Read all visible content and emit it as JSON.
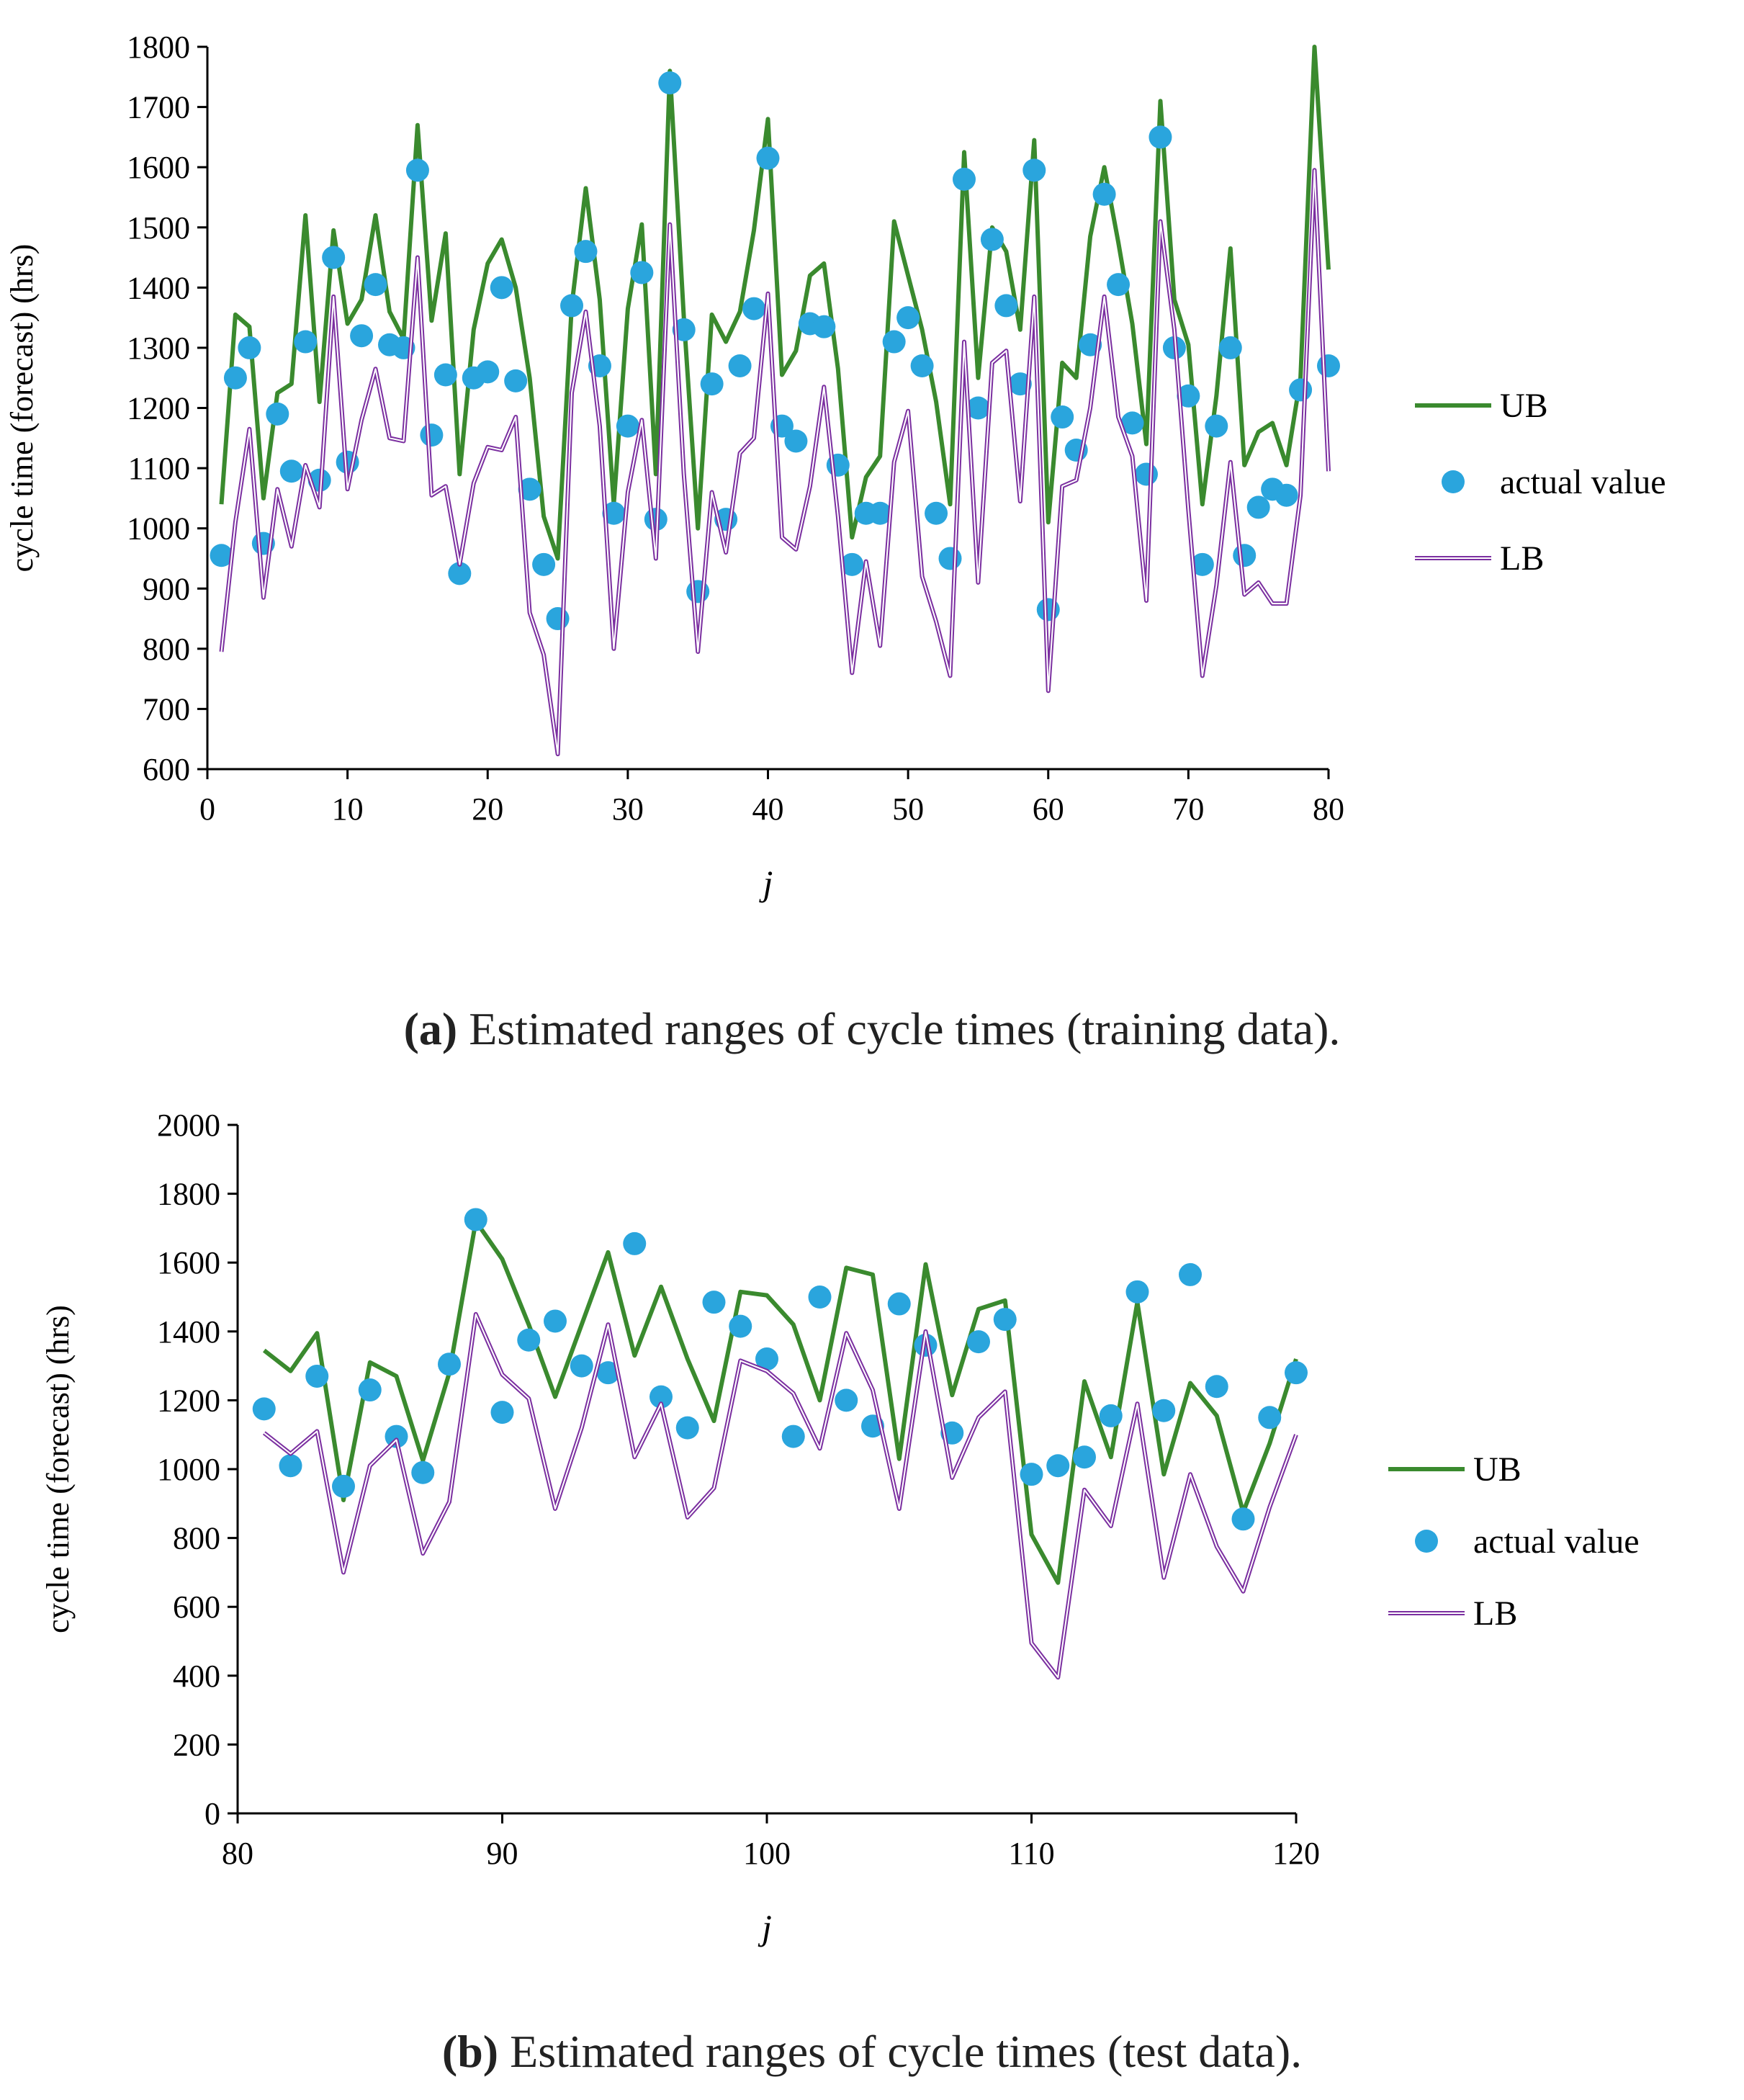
{
  "colors": {
    "ub": "#3a8a2e",
    "lb": "#7b2fa0",
    "lb_inner": "#ffffff",
    "actual": "#2aa5dd",
    "axis": "#000000"
  },
  "legend_labels": {
    "ub": "UB",
    "actual": "actual value",
    "lb": "LB"
  },
  "panels": [
    {
      "caption_letter": "(a)",
      "caption_text": " Estimated ranges of cycle times (training data).",
      "ylabel": "cycle time (forecast) (hrs)",
      "xlabel": "j"
    },
    {
      "caption_letter": "(b)",
      "caption_text": " Estimated ranges of cycle times (test data).",
      "ylabel": "cycle time (forecast) (hrs)",
      "xlabel": "j"
    }
  ],
  "chart_data": [
    {
      "type": "line",
      "title": "",
      "xlabel": "j",
      "ylabel": "cycle time (forecast) (hrs)",
      "xlim": [
        0,
        80
      ],
      "ylim": [
        600,
        1800
      ],
      "xticks": [
        0,
        10,
        20,
        30,
        40,
        50,
        60,
        70,
        80
      ],
      "yticks": [
        600,
        700,
        800,
        900,
        1000,
        1100,
        1200,
        1300,
        1400,
        1500,
        1600,
        1700,
        1800
      ],
      "grid": false,
      "legend_position": "right",
      "x_start": 1,
      "series": [
        {
          "name": "UB",
          "style": "line",
          "values": [
            1040,
            1355,
            1335,
            1050,
            1225,
            1240,
            1520,
            1210,
            1495,
            1340,
            1380,
            1520,
            1360,
            1315,
            1670,
            1345,
            1490,
            1090,
            1330,
            1440,
            1480,
            1400,
            1250,
            1020,
            950,
            1370,
            1565,
            1380,
            1040,
            1365,
            1505,
            1090,
            1760,
            1350,
            1000,
            1355,
            1310,
            1360,
            1495,
            1680,
            1255,
            1295,
            1420,
            1440,
            1265,
            985,
            1085,
            1120,
            1510,
            1420,
            1330,
            1210,
            1040,
            1625,
            1250,
            1500,
            1460,
            1330,
            1645,
            1010,
            1275,
            1250,
            1485,
            1600,
            1475,
            1340,
            1140,
            1710,
            1380,
            1305,
            1040,
            1220,
            1465,
            1105,
            1160,
            1175,
            1105,
            1250,
            1800,
            1430
          ]
        },
        {
          "name": "actual value",
          "style": "marker",
          "values": [
            955,
            1250,
            1300,
            975,
            1190,
            1095,
            1310,
            1080,
            1450,
            1110,
            1320,
            1405,
            1305,
            1300,
            1595,
            1155,
            1255,
            925,
            1250,
            1260,
            1400,
            1245,
            1065,
            940,
            850,
            1370,
            1460,
            1270,
            1025,
            1170,
            1425,
            1015,
            1740,
            1330,
            895,
            1240,
            1015,
            1270,
            1365,
            1615,
            1170,
            1145,
            1340,
            1335,
            1105,
            940,
            1025,
            1025,
            1310,
            1350,
            1270,
            1025,
            950,
            1580,
            1200,
            1480,
            1370,
            1240,
            1595,
            865,
            1185,
            1130,
            1305,
            1555,
            1405,
            1175,
            1090,
            1650,
            1300,
            1220,
            940,
            1170,
            1300,
            955,
            1035,
            1065,
            1055,
            1230,
            null,
            1270
          ]
        },
        {
          "name": "LB",
          "style": "double-line",
          "values": [
            795,
            1010,
            1165,
            885,
            1065,
            970,
            1105,
            1035,
            1385,
            1065,
            1180,
            1265,
            1150,
            1145,
            1450,
            1055,
            1070,
            940,
            1075,
            1135,
            1130,
            1185,
            860,
            790,
            625,
            1225,
            1360,
            1170,
            800,
            1060,
            1180,
            950,
            1505,
            1090,
            795,
            1060,
            960,
            1125,
            1150,
            1390,
            985,
            965,
            1070,
            1235,
            1020,
            760,
            945,
            805,
            1110,
            1195,
            920,
            845,
            755,
            1310,
            910,
            1275,
            1295,
            1045,
            1385,
            730,
            1070,
            1080,
            1200,
            1385,
            1185,
            1120,
            880,
            1510,
            1330,
            1030,
            755,
            905,
            1110,
            890,
            910,
            875,
            875,
            1055,
            1595,
            1095
          ]
        }
      ]
    },
    {
      "type": "line",
      "title": "",
      "xlabel": "j",
      "ylabel": "cycle time (forecast) (hrs)",
      "xlim": [
        80,
        120
      ],
      "ylim": [
        0,
        2000
      ],
      "xticks": [
        80,
        90,
        100,
        110,
        120
      ],
      "yticks": [
        0,
        200,
        400,
        600,
        800,
        1000,
        1200,
        1400,
        1600,
        1800,
        2000
      ],
      "grid": false,
      "legend_position": "right",
      "x_start": 81,
      "series": [
        {
          "name": "UB",
          "style": "line",
          "values": [
            1345,
            1285,
            1395,
            910,
            1310,
            1270,
            1025,
            1280,
            1720,
            1610,
            1420,
            1210,
            1420,
            1630,
            1330,
            1530,
            1320,
            1140,
            1515,
            1505,
            1420,
            1200,
            1585,
            1565,
            1030,
            1595,
            1215,
            1465,
            1490,
            810,
            670,
            1255,
            1035,
            1485,
            985,
            1250,
            1155,
            875,
            1075,
            1320
          ]
        },
        {
          "name": "actual value",
          "style": "marker",
          "values": [
            1175,
            1010,
            1270,
            950,
            1230,
            1095,
            990,
            1305,
            1725,
            1165,
            1375,
            1430,
            1300,
            1280,
            1655,
            1210,
            1120,
            1485,
            1415,
            1320,
            1095,
            1500,
            1200,
            1125,
            1480,
            1360,
            1105,
            1370,
            1435,
            985,
            1010,
            1035,
            1155,
            1515,
            1170,
            1565,
            1240,
            855,
            1150,
            1280
          ]
        },
        {
          "name": "LB",
          "style": "double-line",
          "values": [
            1105,
            1045,
            1110,
            700,
            1010,
            1085,
            755,
            905,
            1450,
            1275,
            1205,
            885,
            1120,
            1420,
            1035,
            1190,
            860,
            945,
            1315,
            1285,
            1220,
            1060,
            1395,
            1230,
            885,
            1400,
            975,
            1150,
            1225,
            495,
            395,
            940,
            835,
            1190,
            685,
            985,
            775,
            645,
            890,
            1100
          ]
        }
      ]
    }
  ]
}
